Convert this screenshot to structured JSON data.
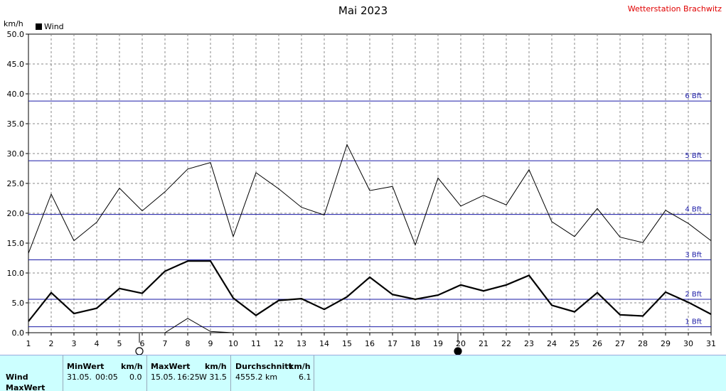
{
  "title": "Mai 2023",
  "station": "Wetterstation Brachwitz",
  "unit": "km/h",
  "legend": "Wind",
  "chart_data": {
    "type": "line",
    "title": "Mai 2023",
    "ylabel": "km/h",
    "ylim": [
      0,
      50
    ],
    "yticks": [
      "0.0",
      "5.0",
      "10.0",
      "15.0",
      "20.0",
      "25.0",
      "30.0",
      "35.0",
      "40.0",
      "45.0",
      "50.0"
    ],
    "xlim": [
      1,
      31
    ],
    "x": [
      1,
      2,
      3,
      4,
      5,
      6,
      7,
      8,
      9,
      10,
      11,
      12,
      13,
      14,
      15,
      16,
      17,
      18,
      19,
      20,
      21,
      22,
      23,
      24,
      25,
      26,
      27,
      28,
      29,
      30,
      31
    ],
    "grid": true,
    "legend_position": "top-left",
    "series": [
      {
        "name": "Wind",
        "role": "max",
        "values": [
          13.3,
          23.2,
          15.4,
          18.5,
          24.2,
          20.4,
          23.6,
          27.4,
          28.5,
          16.1,
          26.8,
          24.1,
          21.0,
          19.7,
          31.5,
          23.8,
          24.5,
          14.7,
          25.9,
          21.2,
          23.0,
          21.4,
          27.3,
          18.6,
          16.1,
          20.8,
          16.0,
          15.1,
          20.5,
          18.3,
          15.4
        ]
      },
      {
        "name": "Wind",
        "role": "mean",
        "values": [
          1.9,
          6.7,
          3.2,
          4.1,
          7.4,
          6.6,
          10.3,
          12.0,
          12.0,
          5.8,
          2.9,
          5.4,
          5.7,
          3.9,
          6.0,
          9.3,
          6.4,
          5.6,
          6.3,
          8.0,
          7.0,
          8.0,
          9.6,
          4.6,
          3.5,
          6.7,
          3.0,
          2.8,
          6.8,
          5.1,
          3.1
        ]
      },
      {
        "name": "Wind",
        "role": "min",
        "values": [
          0,
          0,
          0,
          0,
          0,
          0,
          0,
          2.4,
          0.2,
          0,
          0,
          0,
          0,
          0,
          0,
          0,
          0,
          0,
          0,
          0,
          0,
          0,
          0,
          0,
          0,
          0,
          0,
          0,
          0,
          0,
          0
        ]
      }
    ],
    "beaufort_lines": [
      {
        "label": "1 Bft",
        "value": 1.0
      },
      {
        "label": "2 Bft",
        "value": 5.6
      },
      {
        "label": "3 Bft",
        "value": 12.2
      },
      {
        "label": "4 Bft",
        "value": 19.8
      },
      {
        "label": "5 Bft",
        "value": 28.8
      },
      {
        "label": "6 Bft",
        "value": 38.8
      }
    ],
    "moon_phases": [
      {
        "day": 6,
        "phase": "full"
      },
      {
        "day": 20,
        "phase": "new"
      }
    ]
  },
  "stats": {
    "row_labels": [
      "Wind",
      "MaxWert"
    ],
    "min_header": "MinWert",
    "max_header": "MaxWert",
    "avg_header": "Durchschnitt",
    "unit_header": "km/h",
    "min_date": "31.05.",
    "min_time": "00:05",
    "min_value": "0.0",
    "max_date": "15.05.",
    "max_time": "16:25",
    "max_value": "W 31.5",
    "avg_distance": "4555.2 km",
    "avg_value": "6.1"
  }
}
